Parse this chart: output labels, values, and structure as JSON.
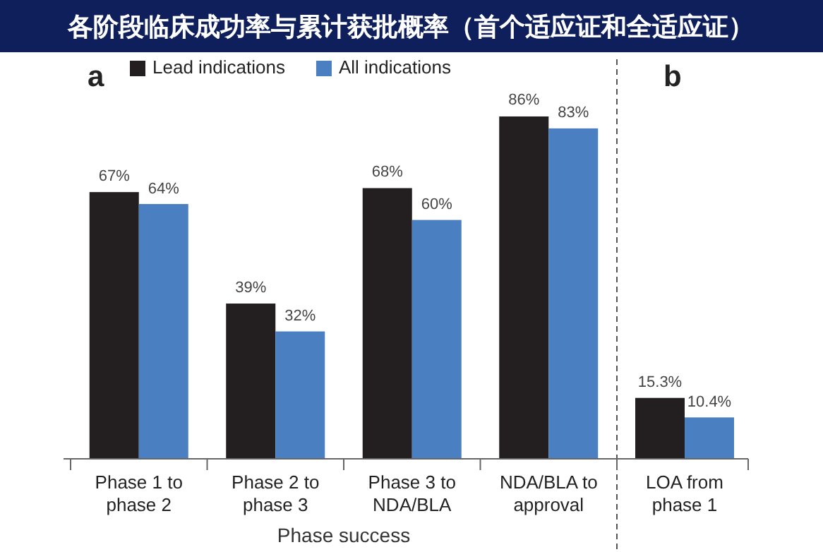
{
  "chart_data": [
    {
      "type": "bar",
      "title": "各阶段临床成功率与累计获批概率（首个适应证和全适应证）",
      "annotations": [
        "a"
      ],
      "xlabel": "Phase success",
      "categories": [
        "Phase 1 to phase 2",
        "Phase 2 to phase 3",
        "Phase 3 to NDA/BLA",
        "NDA/BLA to approval"
      ],
      "legend": "top",
      "series": [
        {
          "name": "Lead indications",
          "color": "#231f20",
          "values": [
            67,
            39,
            68,
            86
          ],
          "value_labels": [
            "67%",
            "39%",
            "68%",
            "86%"
          ]
        },
        {
          "name": "All indications",
          "color": "#4a7fc1",
          "values": [
            64,
            32,
            60,
            83
          ],
          "value_labels": [
            "64%",
            "32%",
            "60%",
            "83%"
          ]
        }
      ]
    },
    {
      "type": "bar",
      "annotations": [
        "b"
      ],
      "categories": [
        "LOA from phase 1"
      ],
      "series": [
        {
          "color": "#231f20",
          "values": [
            15.3
          ],
          "value_labels": [
            "15.3%"
          ]
        },
        {
          "color": "#4a7fc1",
          "values": [
            10.4
          ],
          "value_labels": [
            "10.4%"
          ]
        }
      ]
    }
  ]
}
